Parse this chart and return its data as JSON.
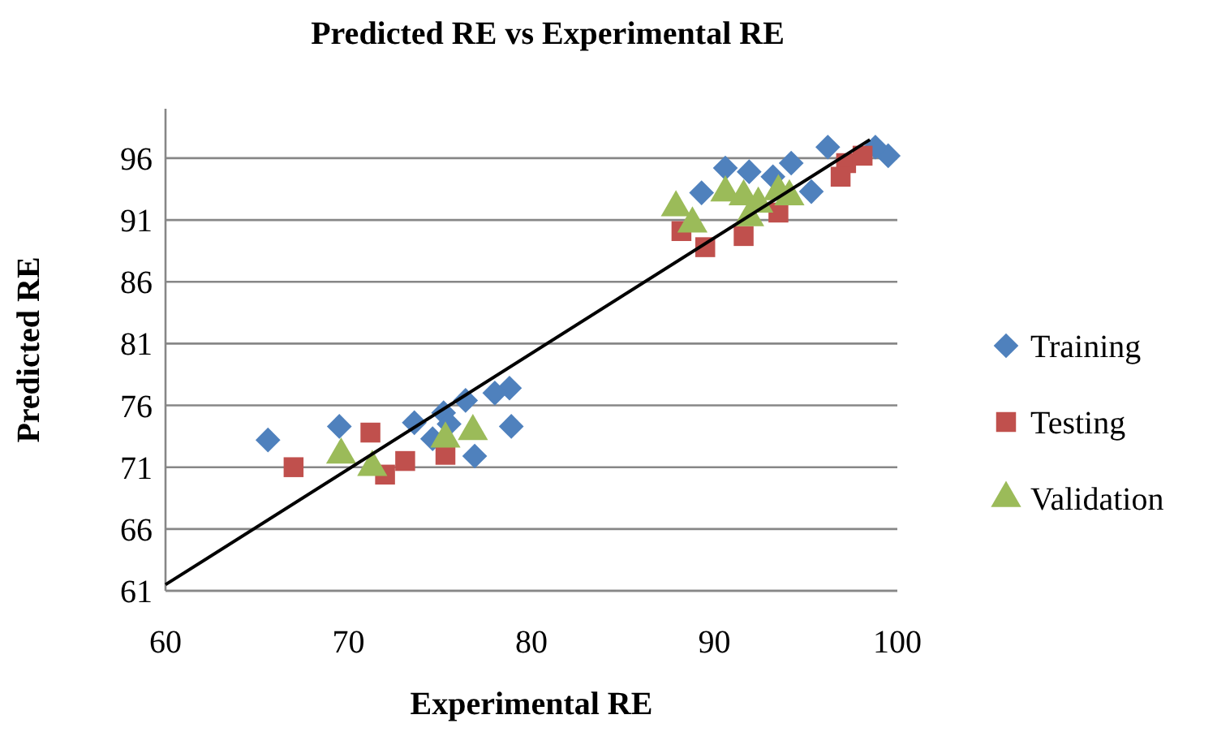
{
  "chart_data": {
    "type": "scatter",
    "title": "Predicted RE vs Experimental RE",
    "xlabel": "Experimental RE",
    "ylabel": "Predicted RE",
    "xlim": [
      60,
      100
    ],
    "xticks": [
      60,
      70,
      80,
      90,
      100
    ],
    "ylim": [
      61,
      100
    ],
    "yticks": [
      61,
      66,
      71,
      76,
      81,
      86,
      91,
      96
    ],
    "grid": "y",
    "legend": "right",
    "series": [
      {
        "name": "Training",
        "color": "#4f81bd",
        "marker": "diamond",
        "x": [
          65.6,
          69.5,
          73.6,
          74.6,
          75.2,
          76.4,
          75.5,
          78.8,
          78.0,
          78.9,
          76.9,
          90.6,
          91.9,
          94.2,
          96.2,
          99.5,
          89.3,
          93.2,
          95.3,
          98.8
        ],
        "values": [
          73.2,
          74.3,
          74.6,
          73.3,
          75.4,
          76.4,
          74.5,
          77.4,
          77.0,
          74.3,
          71.9,
          95.2,
          94.9,
          95.6,
          96.9,
          96.2,
          93.2,
          94.5,
          93.3,
          96.9
        ]
      },
      {
        "name": "Testing",
        "color": "#c0504d",
        "marker": "square",
        "x": [
          67.0,
          71.2,
          72.0,
          73.1,
          75.3,
          88.2,
          89.5,
          91.6,
          93.5,
          97.2,
          98.1,
          96.9
        ],
        "values": [
          71.0,
          73.8,
          70.4,
          71.5,
          72.0,
          90.1,
          88.8,
          89.7,
          91.6,
          95.6,
          96.2,
          94.5
        ]
      },
      {
        "name": "Validation",
        "color": "#9bbb59",
        "marker": "triangle",
        "x": [
          69.6,
          71.3,
          75.3,
          76.8,
          87.9,
          88.8,
          90.6,
          91.6,
          92.4,
          91.9,
          93.5,
          94.1
        ],
        "values": [
          72.0,
          71.0,
          73.3,
          73.9,
          92.0,
          90.7,
          93.2,
          92.9,
          92.3,
          91.2,
          93.3,
          92.9
        ]
      },
      {
        "type": "line",
        "color": "#000000",
        "marker": "none",
        "x": [
          60,
          98.5
        ],
        "values": [
          61.5,
          97.5
        ]
      }
    ]
  }
}
